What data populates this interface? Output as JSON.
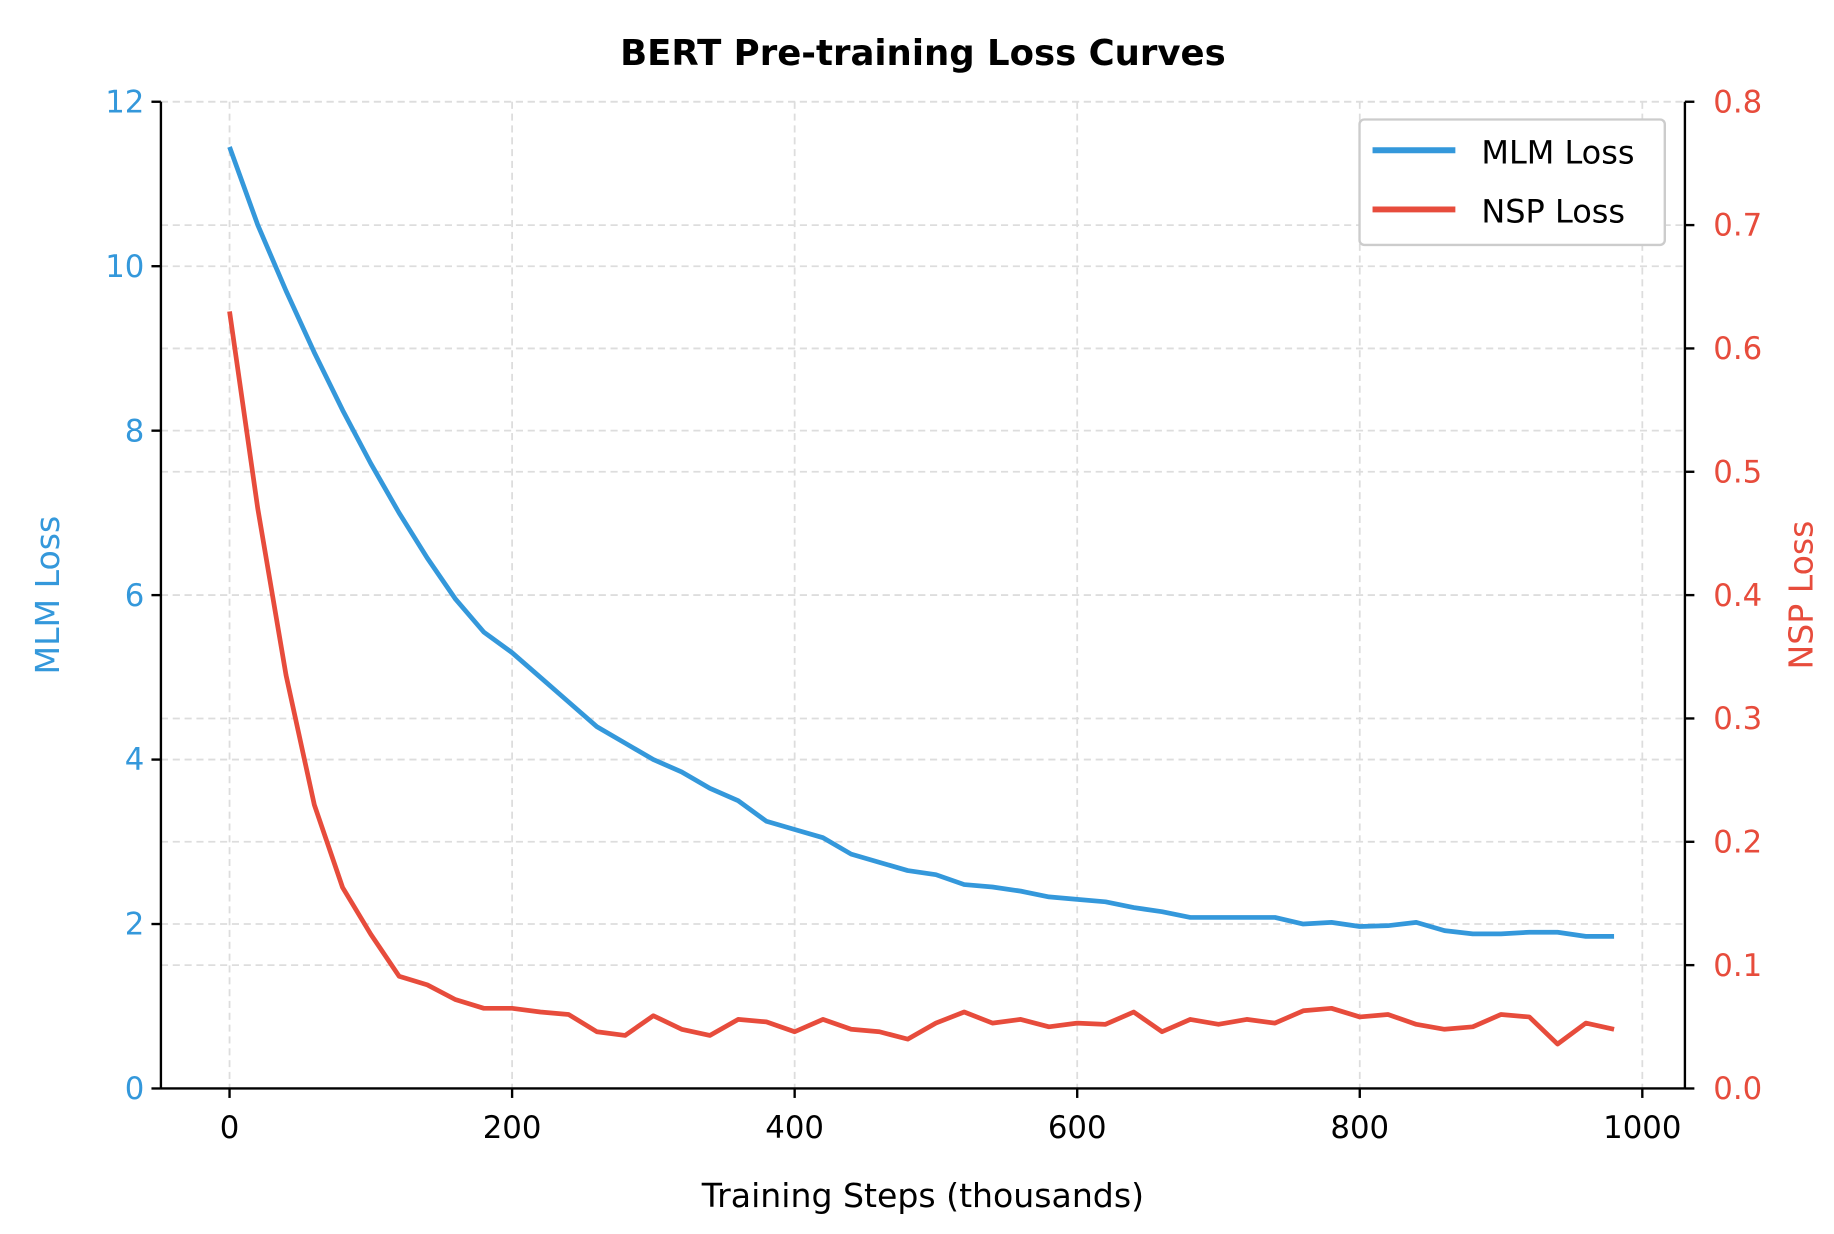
{
  "chart_data": {
    "type": "line",
    "title": "BERT Pre-training Loss Curves",
    "xlabel": "Training Steps (thousands)",
    "ylabel_left": "MLM Loss",
    "ylabel_right": "NSP Loss",
    "xlim": [
      -50,
      1030
    ],
    "ylim_left": [
      0,
      12
    ],
    "ylim_right": [
      0.0,
      0.8
    ],
    "xticks": [
      "0",
      "200",
      "400",
      "600",
      "800",
      "1000"
    ],
    "yticks_left": [
      "0",
      "2",
      "4",
      "6",
      "8",
      "10",
      "12"
    ],
    "yticks_right": [
      "0.0",
      "0.1",
      "0.2",
      "0.3",
      "0.4",
      "0.5",
      "0.6",
      "0.7",
      "0.8"
    ],
    "grid": true,
    "legend_position": "top-right",
    "colors": {
      "mlm": "#3498db",
      "nsp": "#e74c3c",
      "grid": "#dddddd",
      "axis": "#000000"
    },
    "x": [
      0,
      20,
      40,
      60,
      80,
      100,
      120,
      140,
      160,
      180,
      200,
      220,
      240,
      260,
      280,
      300,
      320,
      340,
      360,
      380,
      400,
      420,
      440,
      460,
      480,
      500,
      520,
      540,
      560,
      580,
      600,
      620,
      640,
      660,
      680,
      700,
      720,
      740,
      760,
      780,
      800,
      820,
      840,
      860,
      880,
      900,
      920,
      940,
      960,
      980
    ],
    "series": [
      {
        "name": "MLM Loss",
        "axis": "left",
        "color": "#3498db",
        "values": [
          11.45,
          10.5,
          9.7,
          8.95,
          8.25,
          7.6,
          7.0,
          6.45,
          5.95,
          5.55,
          5.3,
          5.0,
          4.7,
          4.4,
          4.2,
          4.0,
          3.85,
          3.65,
          3.5,
          3.25,
          3.15,
          3.05,
          2.85,
          2.75,
          2.65,
          2.6,
          2.48,
          2.45,
          2.4,
          2.33,
          2.3,
          2.27,
          2.2,
          2.15,
          2.08,
          2.08,
          2.08,
          2.08,
          2.0,
          2.02,
          1.97,
          1.98,
          2.02,
          1.92,
          1.88,
          1.88,
          1.9,
          1.9,
          1.85,
          1.85
        ]
      },
      {
        "name": "NSP Loss",
        "axis": "right",
        "color": "#e74c3c",
        "values": [
          0.63,
          0.47,
          0.335,
          0.23,
          0.163,
          0.125,
          0.091,
          0.084,
          0.072,
          0.065,
          0.065,
          0.062,
          0.06,
          0.046,
          0.043,
          0.059,
          0.048,
          0.043,
          0.056,
          0.054,
          0.046,
          0.056,
          0.048,
          0.046,
          0.04,
          0.053,
          0.062,
          0.053,
          0.056,
          0.05,
          0.053,
          0.052,
          0.062,
          0.046,
          0.056,
          0.052,
          0.056,
          0.053,
          0.063,
          0.065,
          0.058,
          0.06,
          0.052,
          0.048,
          0.05,
          0.06,
          0.058,
          0.036,
          0.053,
          0.048
        ]
      }
    ]
  }
}
